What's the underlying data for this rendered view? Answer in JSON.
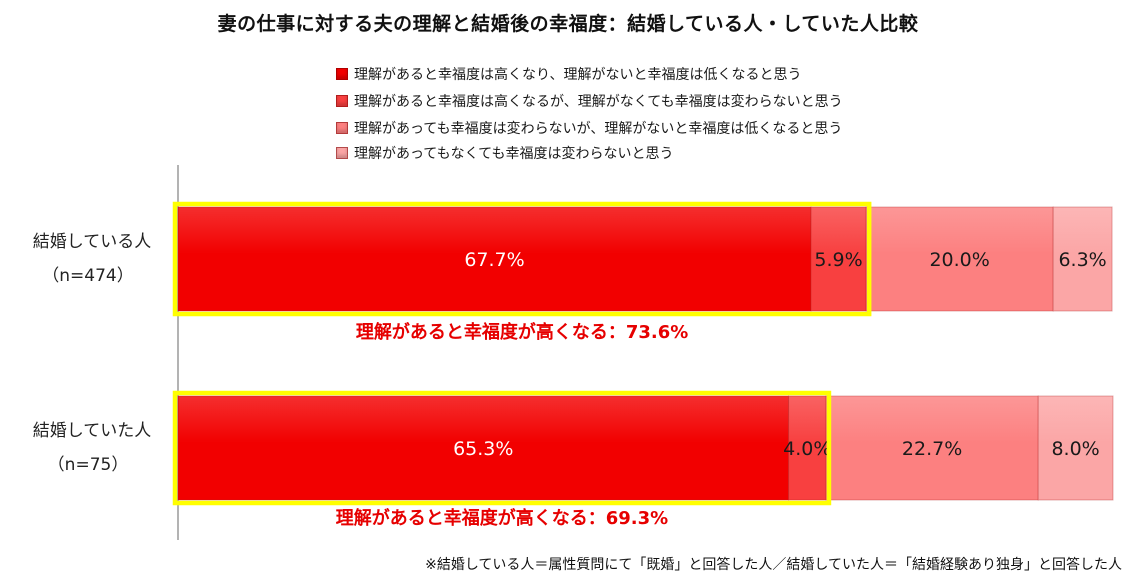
{
  "title": "妻の仕事に対する夫の理解と結婚後の幸福度：結婚している人・していた人比較",
  "legend": [
    {
      "label": "理解があると幸福度は高くなり、理解がないと幸福度は低くなると思う",
      "color": "#f20000"
    },
    {
      "label": "理解があると幸福度は高くなるが、理解がなくても幸福度は変わらないと思う",
      "color": "#f84040"
    },
    {
      "label": "理解があっても幸福度は変わらないが、理解がないと幸福度は低くなると思う",
      "color": "#fc8080"
    },
    {
      "label": "理解があってもなくても幸福度は変わらないと思う",
      "color": "#fba6a6"
    }
  ],
  "chart_data": {
    "type": "bar",
    "orientation": "horizontal",
    "stacked": true,
    "xlim": [
      0,
      100
    ],
    "categories": [
      {
        "label": "結婚している人",
        "n": "（n=474）"
      },
      {
        "label": "結婚していた人",
        "n": "（n=75）"
      }
    ],
    "series": [
      {
        "name": "理解があると幸福度は高くなり、理解がないと幸福度は低くなると思う",
        "color": "#f20000",
        "values": [
          67.7,
          65.3
        ],
        "labels": [
          "67.7%",
          "65.3%"
        ]
      },
      {
        "name": "理解があると幸福度は高くなるが、理解がなくても幸福度は変わらないと思う",
        "color": "#f84040",
        "values": [
          5.9,
          4.0
        ],
        "labels": [
          "5.9%",
          "4.0%"
        ]
      },
      {
        "name": "理解があっても幸福度は変わらないが、理解がないと幸福度は低くなると思う",
        "color": "#fc8080",
        "values": [
          20.0,
          22.7
        ],
        "labels": [
          "20.0%",
          "22.7%"
        ]
      },
      {
        "name": "理解があってもなくても幸福度は変わらないと思う",
        "color": "#fba6a6",
        "values": [
          6.3,
          8.0
        ],
        "labels": [
          "6.3%",
          "8.0%"
        ]
      }
    ],
    "annotations": [
      {
        "text": "理解があると幸福度が高くなる：73.6%",
        "value": 73.6
      },
      {
        "text": "理解があると幸福度が高くなる：69.3%",
        "value": 69.3
      }
    ],
    "highlight_color": "#ffff00",
    "annotation_color": "#e60000"
  },
  "footnote": "※結婚している人＝属性質問にて「既婚」と回答した人／結婚していた人＝「結婚経験あり独身」と回答した人"
}
